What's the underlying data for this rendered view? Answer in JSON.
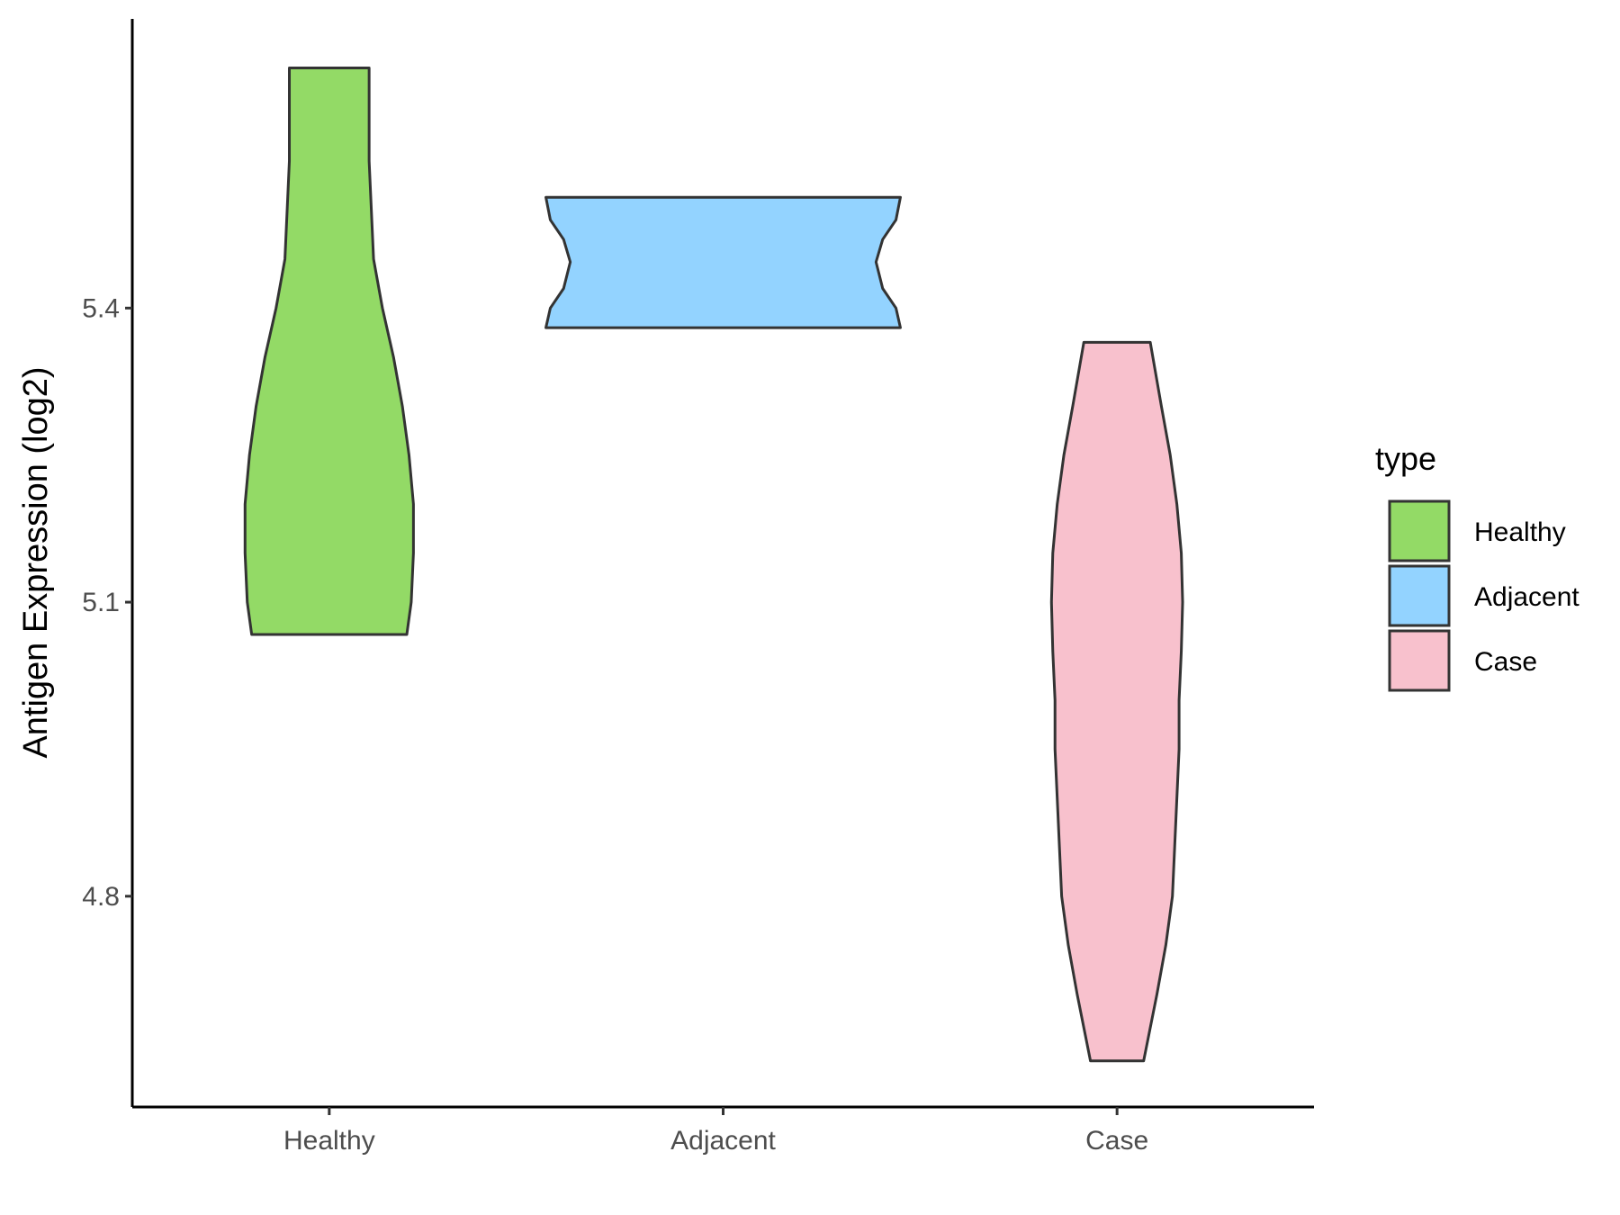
{
  "chart_data": {
    "type": "violin",
    "ylabel": "Antigen Expression (log2)",
    "xlabel": "",
    "categories": [
      "Healthy",
      "Adjacent",
      "Case"
    ],
    "yticks": [
      4.8,
      5.1,
      5.4
    ],
    "ylim": [
      4.585,
      5.695
    ],
    "grid": false,
    "legend": {
      "title": "type",
      "position": "right",
      "entries": [
        "Healthy",
        "Adjacent",
        "Case"
      ]
    },
    "series": [
      {
        "name": "Healthy",
        "color": "#93DA66",
        "min": 5.067,
        "max": 5.645,
        "density": [
          [
            5.067,
            0.175
          ],
          [
            5.1,
            0.185
          ],
          [
            5.15,
            0.19
          ],
          [
            5.2,
            0.19
          ],
          [
            5.25,
            0.18
          ],
          [
            5.3,
            0.165
          ],
          [
            5.35,
            0.145
          ],
          [
            5.4,
            0.12
          ],
          [
            5.45,
            0.1
          ],
          [
            5.5,
            0.095
          ],
          [
            5.55,
            0.09
          ],
          [
            5.6,
            0.09
          ],
          [
            5.645,
            0.09
          ]
        ]
      },
      {
        "name": "Adjacent",
        "color": "#93D3FF",
        "min": 5.38,
        "max": 5.513,
        "density": [
          [
            5.38,
            0.4
          ],
          [
            5.4,
            0.39
          ],
          [
            5.42,
            0.36
          ],
          [
            5.447,
            0.345
          ],
          [
            5.47,
            0.36
          ],
          [
            5.49,
            0.39
          ],
          [
            5.513,
            0.4
          ]
        ]
      },
      {
        "name": "Case",
        "color": "#F8C1CD",
        "min": 4.632,
        "max": 5.365,
        "density": [
          [
            4.632,
            0.06
          ],
          [
            4.7,
            0.09
          ],
          [
            4.75,
            0.11
          ],
          [
            4.8,
            0.125
          ],
          [
            4.85,
            0.13
          ],
          [
            4.9,
            0.135
          ],
          [
            4.95,
            0.14
          ],
          [
            5.0,
            0.14
          ],
          [
            5.05,
            0.145
          ],
          [
            5.1,
            0.148
          ],
          [
            5.15,
            0.145
          ],
          [
            5.2,
            0.135
          ],
          [
            5.25,
            0.12
          ],
          [
            5.3,
            0.1
          ],
          [
            5.365,
            0.075
          ]
        ]
      }
    ]
  }
}
